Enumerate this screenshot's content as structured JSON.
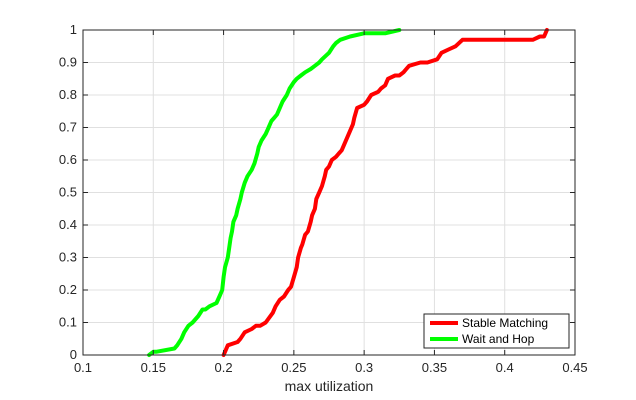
{
  "chart_data": {
    "type": "line",
    "title": "",
    "xlabel": "max utilization",
    "ylabel": "",
    "xlim": [
      0.1,
      0.45
    ],
    "ylim": [
      0,
      1
    ],
    "xticks": [
      0.1,
      0.15,
      0.2,
      0.25,
      0.3,
      0.35,
      0.4,
      0.45
    ],
    "xtick_labels": [
      "0.1",
      "0.15",
      "0.2",
      "0.25",
      "0.3",
      "0.35",
      "0.4",
      "0.45"
    ],
    "yticks": [
      0,
      0.1,
      0.2,
      0.3,
      0.4,
      0.5,
      0.6,
      0.7,
      0.8,
      0.9,
      1
    ],
    "ytick_labels": [
      "0",
      "0.1",
      "0.2",
      "0.3",
      "0.4",
      "0.5",
      "0.6",
      "0.7",
      "0.8",
      "0.9",
      "1"
    ],
    "grid": true,
    "legend_position": "bottom-right",
    "series": [
      {
        "name": "Stable Matching",
        "color": "#ff0000",
        "x": [
          0.2,
          0.201,
          0.203,
          0.21,
          0.212,
          0.215,
          0.22,
          0.223,
          0.226,
          0.23,
          0.235,
          0.237,
          0.24,
          0.243,
          0.246,
          0.248,
          0.25,
          0.252,
          0.253,
          0.255,
          0.256,
          0.258,
          0.26,
          0.262,
          0.263,
          0.265,
          0.266,
          0.268,
          0.27,
          0.272,
          0.273,
          0.275,
          0.277,
          0.28,
          0.282,
          0.284,
          0.286,
          0.288,
          0.29,
          0.292,
          0.293,
          0.295,
          0.3,
          0.302,
          0.305,
          0.31,
          0.312,
          0.315,
          0.317,
          0.322,
          0.325,
          0.328,
          0.33,
          0.332,
          0.34,
          0.345,
          0.352,
          0.355,
          0.36,
          0.365,
          0.37,
          0.38,
          0.39,
          0.415,
          0.42,
          0.425,
          0.428,
          0.43
        ],
        "values": [
          0.0,
          0.01,
          0.03,
          0.04,
          0.05,
          0.07,
          0.08,
          0.09,
          0.09,
          0.1,
          0.13,
          0.15,
          0.17,
          0.18,
          0.2,
          0.21,
          0.24,
          0.27,
          0.3,
          0.33,
          0.34,
          0.37,
          0.38,
          0.41,
          0.43,
          0.45,
          0.48,
          0.5,
          0.52,
          0.55,
          0.57,
          0.58,
          0.6,
          0.61,
          0.62,
          0.63,
          0.65,
          0.67,
          0.69,
          0.71,
          0.73,
          0.76,
          0.77,
          0.78,
          0.8,
          0.81,
          0.82,
          0.83,
          0.85,
          0.86,
          0.86,
          0.87,
          0.88,
          0.89,
          0.9,
          0.9,
          0.91,
          0.93,
          0.94,
          0.95,
          0.97,
          0.97,
          0.97,
          0.97,
          0.97,
          0.98,
          0.98,
          1.0
        ]
      },
      {
        "name": "Wait and Hop",
        "color": "#00ff00",
        "x": [
          0.147,
          0.15,
          0.152,
          0.165,
          0.167,
          0.17,
          0.172,
          0.175,
          0.178,
          0.182,
          0.185,
          0.187,
          0.19,
          0.195,
          0.197,
          0.199,
          0.2,
          0.201,
          0.203,
          0.204,
          0.205,
          0.206,
          0.207,
          0.209,
          0.21,
          0.212,
          0.213,
          0.215,
          0.217,
          0.22,
          0.222,
          0.224,
          0.225,
          0.227,
          0.23,
          0.232,
          0.234,
          0.236,
          0.238,
          0.24,
          0.242,
          0.245,
          0.247,
          0.25,
          0.252,
          0.255,
          0.258,
          0.262,
          0.265,
          0.268,
          0.27,
          0.275,
          0.278,
          0.28,
          0.283,
          0.29,
          0.3,
          0.305,
          0.31,
          0.315,
          0.325
        ],
        "values": [
          0.0,
          0.01,
          0.01,
          0.02,
          0.03,
          0.05,
          0.07,
          0.09,
          0.1,
          0.12,
          0.14,
          0.14,
          0.15,
          0.16,
          0.18,
          0.2,
          0.24,
          0.27,
          0.3,
          0.33,
          0.36,
          0.38,
          0.41,
          0.43,
          0.45,
          0.48,
          0.5,
          0.53,
          0.55,
          0.57,
          0.59,
          0.62,
          0.64,
          0.66,
          0.68,
          0.7,
          0.72,
          0.73,
          0.74,
          0.76,
          0.78,
          0.8,
          0.82,
          0.84,
          0.85,
          0.86,
          0.87,
          0.88,
          0.89,
          0.9,
          0.91,
          0.93,
          0.95,
          0.96,
          0.97,
          0.98,
          0.99,
          0.99,
          0.99,
          0.99,
          1.0
        ]
      }
    ]
  }
}
